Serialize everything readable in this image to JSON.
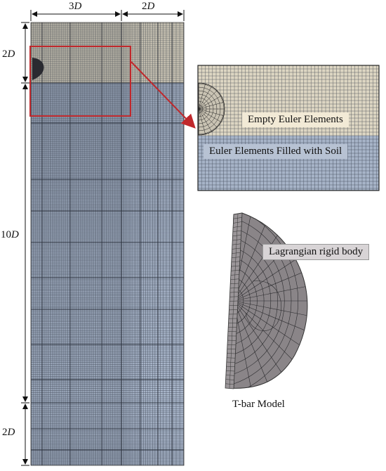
{
  "dimensions": {
    "top_left": {
      "num": "3",
      "var": "D"
    },
    "top_right": {
      "num": "2",
      "var": "D"
    },
    "left_top": {
      "num": "2",
      "var": "D"
    },
    "left_mid": {
      "num": "10",
      "var": "D"
    },
    "left_bottom": {
      "num": "2",
      "var": "D"
    }
  },
  "zoom_labels": {
    "empty": "Empty Euler Elements",
    "soil": "Euler Elements Filled with Soil"
  },
  "tbar": {
    "body_label": "Lagrangian rigid body",
    "caption": "T-bar Model"
  },
  "colors": {
    "empty_euler": "#ddd6c3",
    "soil": "#a7b4c8",
    "mesh_line": "#2c3340",
    "highlight_box": "#c0282c",
    "tbar_fill": "#8a8588",
    "label_box_empty": "#f2ead6",
    "label_box_soil": "#b7c2d3",
    "label_box_body": "#d8d4d6"
  }
}
